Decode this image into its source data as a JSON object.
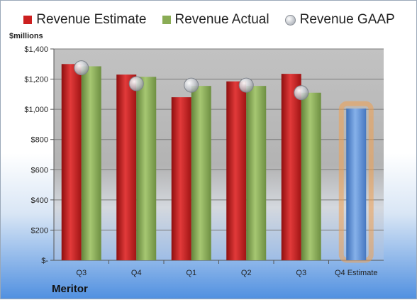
{
  "chart_data": {
    "type": "bar",
    "ylabel": "$millions",
    "company": "Meritor",
    "categories": [
      "Q3",
      "Q4",
      "Q1",
      "Q2",
      "Q3",
      "Q4 Estimate"
    ],
    "ylim": [
      0,
      1400
    ],
    "yticks": [
      {
        "value": 0,
        "label": "$-"
      },
      {
        "value": 200,
        "label": "$200"
      },
      {
        "value": 400,
        "label": "$400"
      },
      {
        "value": 600,
        "label": "$600"
      },
      {
        "value": 800,
        "label": "$800"
      },
      {
        "value": 1000,
        "label": "$1,000"
      },
      {
        "value": 1200,
        "label": "$1,200"
      },
      {
        "value": 1400,
        "label": "$1,400"
      }
    ],
    "series": [
      {
        "name": "Revenue Estimate",
        "type": "bar",
        "color": "#cc1f1f",
        "values": [
          1300,
          1230,
          1080,
          1185,
          1235,
          null
        ]
      },
      {
        "name": "Revenue Actual",
        "type": "bar",
        "color": "#8aac55",
        "values": [
          1285,
          1215,
          1155,
          1155,
          1110,
          null
        ]
      },
      {
        "name": "Revenue GAAP",
        "type": "marker",
        "color": "#b8bcc4",
        "values": [
          1275,
          1170,
          1160,
          1160,
          1110,
          null
        ]
      },
      {
        "name": "Q4 Estimate",
        "type": "bar",
        "color": "#5b8fd6",
        "highlight": "#f0a050",
        "values": [
          null,
          null,
          null,
          null,
          null,
          1005
        ]
      }
    ],
    "grid": true
  }
}
